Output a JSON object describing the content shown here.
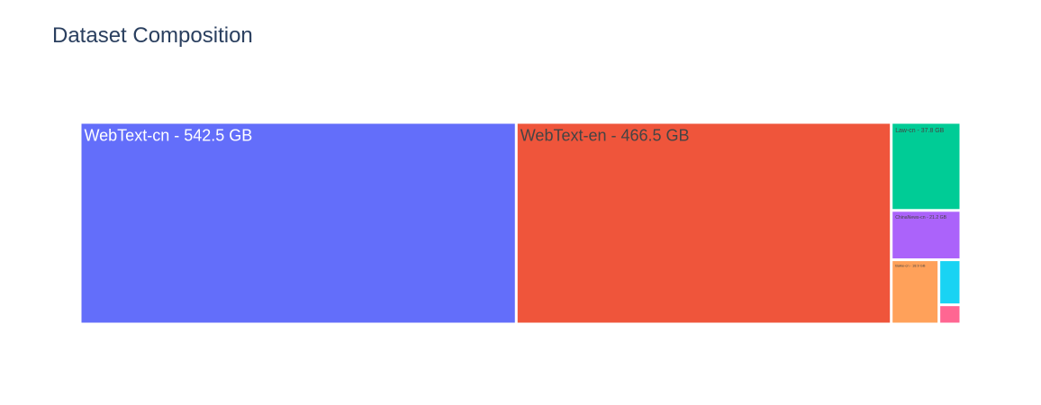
{
  "chart_data": {
    "type": "treemap",
    "title": "Dataset Composition",
    "unit": "GB",
    "items": [
      {
        "name": "WebText-cn",
        "label": "WebText-cn  - 542.5 GB",
        "value": 542.5,
        "color": "#636efa",
        "label_color": "#ffffff"
      },
      {
        "name": "WebText-en",
        "label": "WebText-en - 466.5 GB",
        "value": 466.5,
        "color": "#ef553b",
        "label_color": "#444444"
      },
      {
        "name": "Law-cn",
        "label": "Law-cn  - 37.8 GB",
        "value": 37.8,
        "color": "#00cc96",
        "label_color": "#444444"
      },
      {
        "name": "ChinaNews-cn",
        "label": "ChinaNews-cn  - 21.2 GB",
        "value": 21.2,
        "color": "#ab63fa",
        "label_color": "#444444"
      },
      {
        "name": "Baike-cn",
        "label": "Baike-cn  - 18.9 GB",
        "value": 18.9,
        "color": "#ffa15a",
        "label_color": "#444444"
      },
      {
        "name": "item-6",
        "label": "",
        "value": 6.1,
        "color": "#19d3f3",
        "label_color": "#444444"
      },
      {
        "name": "item-7",
        "label": "",
        "value": 2.6,
        "color": "#ff6692",
        "label_color": "#444444"
      }
    ]
  }
}
